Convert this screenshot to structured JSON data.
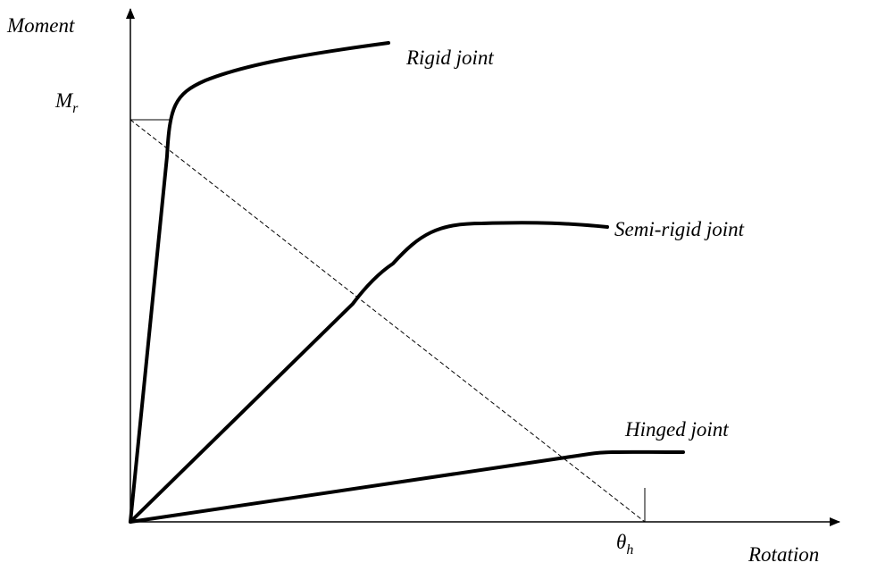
{
  "axes": {
    "y_label": "Moment",
    "x_label": "Rotation",
    "y_marker": {
      "base": "M",
      "sub": "r"
    },
    "x_marker": {
      "base": "θ",
      "sub": "h"
    }
  },
  "curves": [
    {
      "label": "Rigid joint"
    },
    {
      "label": "Semi-rigid joint"
    },
    {
      "label": "Hinged joint"
    }
  ]
}
